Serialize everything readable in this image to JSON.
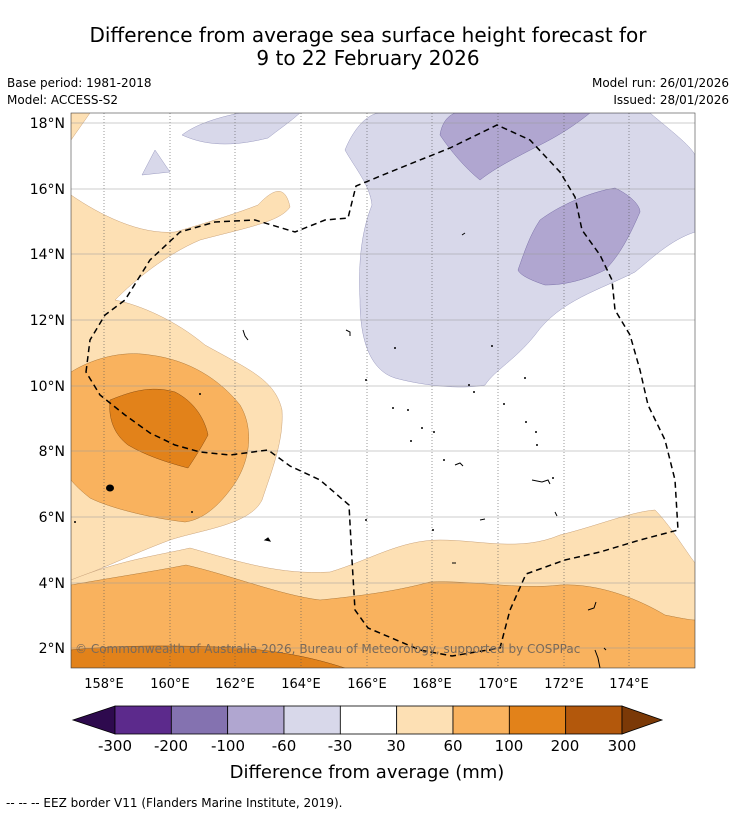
{
  "header": {
    "title_line1": "Difference from average sea surface height forecast for",
    "title_line2": "9 to 22 February 2026",
    "base_period": "Base period: 1981-2018",
    "model": "Model: ACCESS-S2",
    "model_run": "Model run: 26/01/2026",
    "issued": "Issued: 28/01/2026"
  },
  "map": {
    "lat_labels": [
      "18°N",
      "16°N",
      "14°N",
      "12°N",
      "10°N",
      "8°N",
      "6°N",
      "4°N",
      "2°N"
    ],
    "lon_labels": [
      "158°E",
      "160°E",
      "162°E",
      "164°E",
      "166°E",
      "168°E",
      "170°E",
      "172°E",
      "174°E"
    ],
    "copyright": "© Commonwealth of Australia 2026, Bureau of Meteorology, supported by COSPPac"
  },
  "colorbar": {
    "ticks": [
      "-300",
      "-200",
      "-100",
      "-60",
      "-30",
      "30",
      "60",
      "100",
      "200",
      "300"
    ],
    "colors": [
      "#2e0a4e",
      "#5c2a8c",
      "#8472b0",
      "#b0a6d0",
      "#d8d8ea",
      "#ffffff",
      "#fde0b4",
      "#f9b25e",
      "#e2821a",
      "#b3580c",
      "#7b3907"
    ],
    "label": "Difference from average (mm)"
  },
  "footer": {
    "legend_text": "--  --  -- EEZ border V11 (Flanders Marine Institute, 2019)."
  }
}
